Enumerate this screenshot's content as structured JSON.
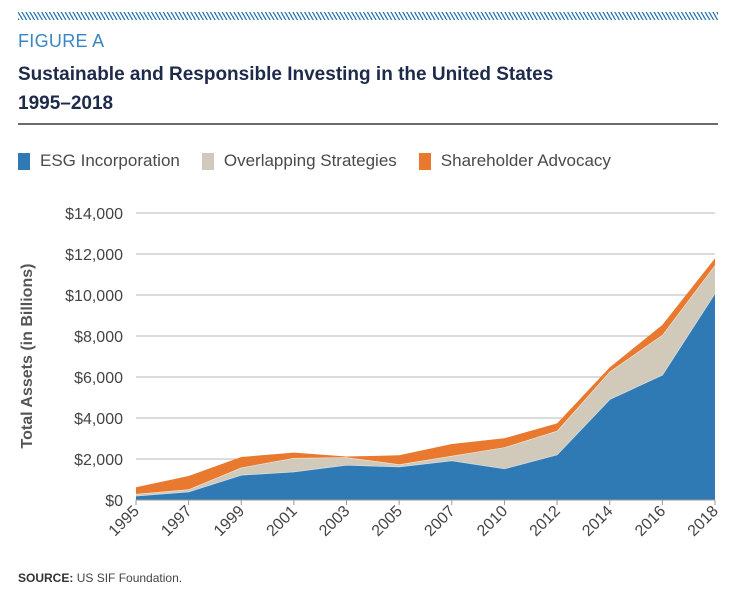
{
  "figure_label": "FIGURE A",
  "title_line1": "Sustainable and Responsible Investing in the United States",
  "title_line2": "1995–2018",
  "source_label": "SOURCE:",
  "source_text": "US SIF Foundation.",
  "chart_data": {
    "type": "area",
    "stacked": true,
    "title": "Sustainable and Responsible Investing in the United States 1995–2018",
    "xlabel": "",
    "ylabel": "Total Assets (in Billions)",
    "ylim": [
      0,
      14000
    ],
    "yticks": [
      0,
      2000,
      4000,
      6000,
      8000,
      10000,
      12000,
      14000
    ],
    "ytick_labels": [
      "$0",
      "$2,000",
      "$4,000",
      "$6,000",
      "$8,000",
      "$10,000",
      "$12,000",
      "$14,000"
    ],
    "grid": true,
    "legend_position": "top",
    "categories": [
      "1995",
      "1997",
      "1999",
      "2001",
      "2003",
      "2005",
      "2007",
      "2010",
      "2012",
      "2014",
      "2016",
      "2018"
    ],
    "series": [
      {
        "name": "ESG Incorporation",
        "color": "#2f7ab5",
        "values": [
          200,
          400,
          1220,
          1380,
          1710,
          1620,
          1920,
          1530,
          2210,
          4910,
          6100,
          10080
        ]
      },
      {
        "name": "Overlapping Strategies",
        "color": "#d1cabb",
        "values": [
          90,
          120,
          360,
          670,
          370,
          120,
          230,
          1040,
          1160,
          1350,
          1950,
          1380
        ]
      },
      {
        "name": "Shareholder Advocacy",
        "color": "#e8792f",
        "values": [
          330,
          650,
          520,
          260,
          40,
          440,
          580,
          440,
          370,
          210,
          490,
          330
        ]
      }
    ]
  }
}
